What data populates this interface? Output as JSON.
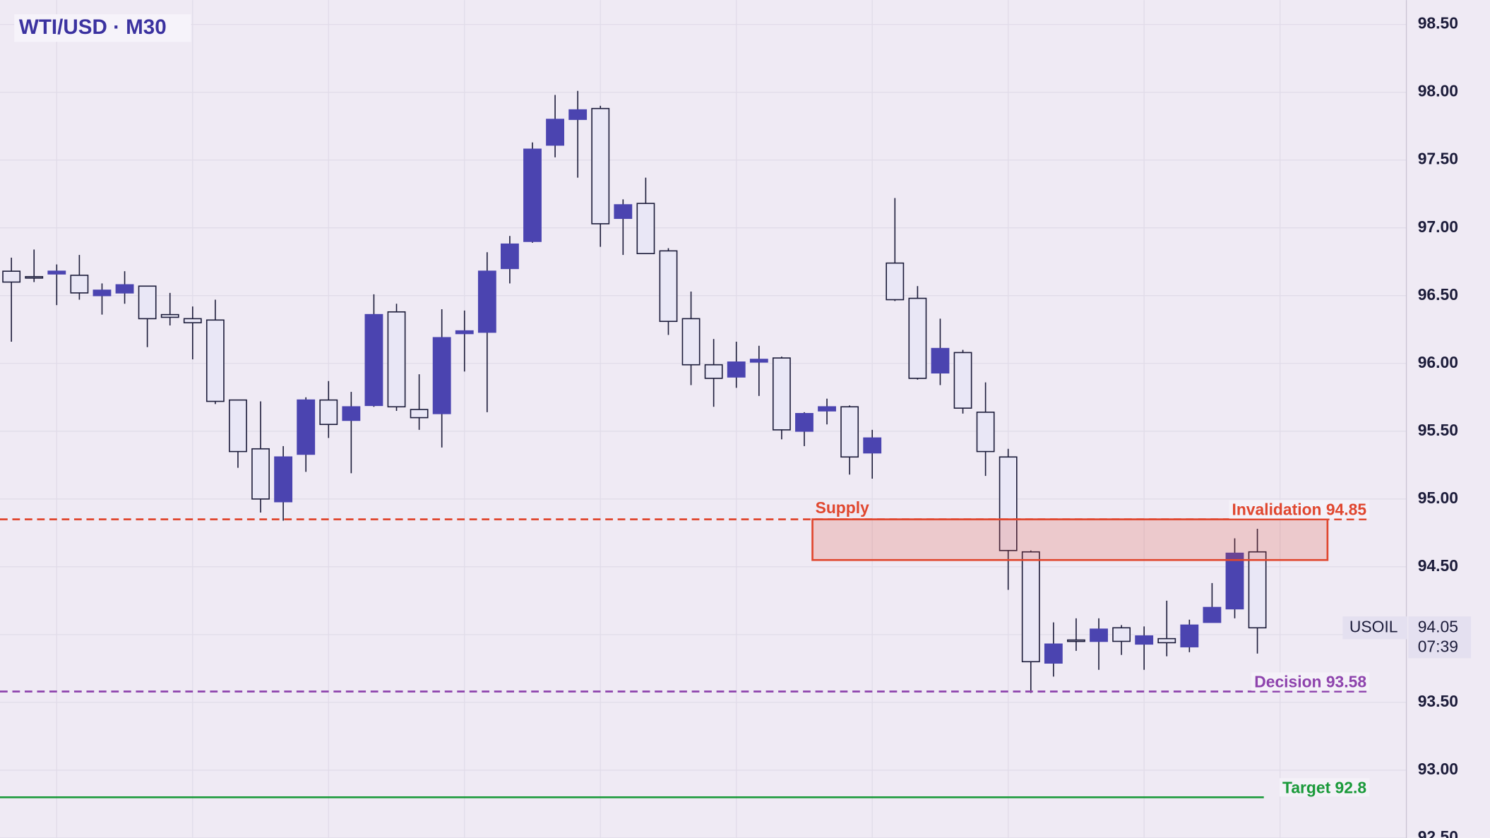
{
  "chart_data": {
    "type": "candlestick",
    "title": "WTI/USD · M30",
    "open": [
      96.68,
      96.64,
      96.66,
      96.65,
      96.5,
      96.52,
      96.57,
      96.36,
      96.33,
      96.32,
      95.73,
      95.37,
      94.98,
      95.33,
      95.73,
      95.58,
      95.69,
      96.38,
      95.66,
      95.63,
      96.22,
      96.23,
      96.7,
      96.9,
      97.61,
      97.8,
      97.88,
      97.07,
      97.18,
      96.83,
      96.33,
      95.99,
      95.9,
      96.01,
      96.04,
      95.5,
      95.65,
      95.68,
      95.34,
      96.74,
      96.48,
      95.93,
      96.08,
      95.64,
      95.31,
      94.61,
      93.79,
      93.96,
      93.95,
      94.05,
      93.93,
      93.97,
      93.91,
      94.09,
      94.19,
      94.61
    ],
    "high": [
      96.78,
      96.84,
      96.73,
      96.8,
      96.59,
      96.68,
      96.57,
      96.52,
      96.42,
      96.47,
      95.73,
      95.72,
      95.39,
      95.75,
      95.87,
      95.79,
      96.51,
      96.44,
      95.92,
      96.4,
      96.39,
      96.82,
      96.94,
      97.63,
      97.98,
      98.01,
      97.9,
      97.21,
      97.37,
      96.85,
      96.53,
      96.18,
      96.16,
      96.13,
      96.05,
      95.64,
      95.74,
      95.69,
      95.51,
      97.22,
      96.57,
      96.33,
      96.1,
      95.86,
      95.37,
      94.62,
      94.09,
      94.12,
      94.12,
      94.07,
      94.06,
      94.25,
      94.11,
      94.38,
      94.71,
      94.78
    ],
    "low": [
      96.16,
      96.6,
      96.43,
      96.47,
      96.36,
      96.44,
      96.12,
      96.28,
      96.03,
      95.7,
      95.23,
      94.9,
      94.84,
      95.2,
      95.45,
      95.19,
      95.68,
      95.65,
      95.51,
      95.38,
      95.94,
      95.64,
      96.59,
      96.89,
      97.52,
      97.37,
      96.86,
      96.8,
      96.81,
      96.21,
      95.84,
      95.68,
      95.82,
      95.76,
      95.44,
      95.39,
      95.55,
      95.18,
      95.15,
      96.46,
      95.88,
      95.84,
      95.63,
      95.17,
      94.33,
      93.57,
      93.69,
      93.88,
      93.74,
      93.85,
      93.74,
      93.84,
      93.87,
      94.09,
      94.12,
      93.86
    ],
    "close": [
      96.6,
      96.63,
      96.68,
      96.52,
      96.54,
      96.58,
      96.33,
      96.34,
      96.3,
      95.72,
      95.35,
      95.0,
      95.31,
      95.73,
      95.55,
      95.68,
      96.36,
      95.68,
      95.6,
      96.19,
      96.24,
      96.68,
      96.88,
      97.58,
      97.8,
      97.87,
      97.03,
      97.17,
      96.81,
      96.31,
      95.99,
      95.89,
      96.01,
      96.03,
      95.51,
      95.63,
      95.68,
      95.31,
      95.45,
      96.47,
      95.89,
      96.11,
      95.67,
      95.35,
      94.62,
      93.8,
      93.93,
      93.95,
      94.04,
      93.95,
      93.99,
      93.94,
      94.07,
      94.2,
      94.6,
      94.05
    ],
    "colors": {
      "up": "#4b44b0",
      "down": "#e9e7f6",
      "outline": "#1c1c3a"
    },
    "ylim": [
      92.5,
      98.68
    ],
    "yticks": [
      {
        "value": 92.5,
        "label": "92.50"
      },
      {
        "value": 93,
        "label": "93.00"
      },
      {
        "value": 93.5,
        "label": "93.50"
      },
      {
        "value": 94,
        "label": "94.00"
      },
      {
        "value": 94.5,
        "label": "94.50"
      },
      {
        "value": 95,
        "label": "95.00"
      },
      {
        "value": 95.5,
        "label": "95.50"
      },
      {
        "value": 96,
        "label": "96.00"
      },
      {
        "value": 96.5,
        "label": "96.50"
      },
      {
        "value": 97,
        "label": "97.00"
      },
      {
        "value": 97.5,
        "label": "97.50"
      },
      {
        "value": 98,
        "label": "98.00"
      },
      {
        "value": 98.5,
        "label": "98.50"
      }
    ],
    "grid": true,
    "zone": {
      "label": "Supply",
      "top": 94.85,
      "bottom": 94.55,
      "color": "#e0472f"
    },
    "levels": [
      {
        "label": "Invalidation 94.85",
        "value": 94.85,
        "color": "#e0472f",
        "style": "dashed"
      },
      {
        "label": "Decision 93.58",
        "value": 93.58,
        "color": "#8e44ad",
        "style": "dashed"
      },
      {
        "label": "Target 92.8",
        "value": 92.8,
        "color": "#1a9a3a",
        "style": "solid"
      }
    ],
    "last_price": {
      "symbol": "USOIL",
      "value": 94.05,
      "countdown": "07:39"
    }
  }
}
